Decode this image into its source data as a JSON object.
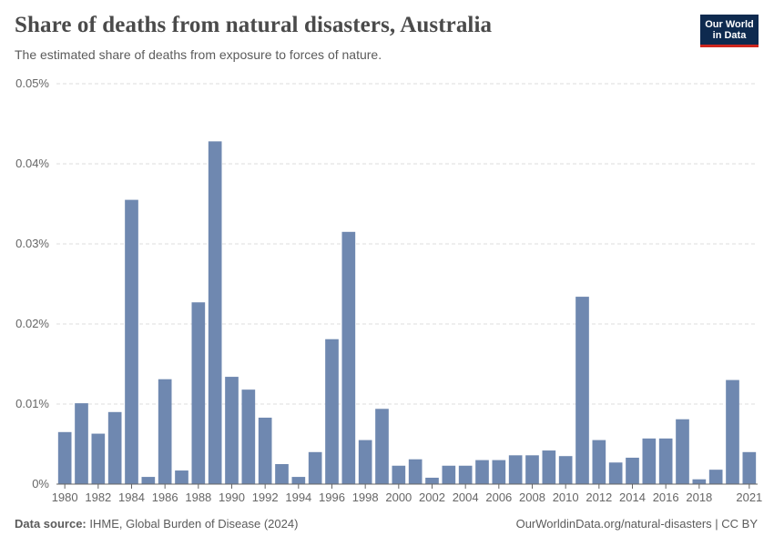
{
  "header": {
    "title": "Share of deaths from natural disasters, Australia",
    "subtitle": "The estimated share of deaths from exposure to forces of nature."
  },
  "logo": {
    "line1": "Our World",
    "line2": "in Data"
  },
  "footer": {
    "source_label": "Data source:",
    "source_text": "IHME, Global Burden of Disease (2024)",
    "link_text": "OurWorldinData.org/natural-disasters | CC BY"
  },
  "colors": {
    "bar": "#6f88b0",
    "grid": "#dddddd",
    "axis": "#666666"
  },
  "chart_data": {
    "type": "bar",
    "title": "Share of deaths from natural disasters, Australia",
    "xlabel": "",
    "ylabel": "",
    "ylim": [
      0,
      0.05
    ],
    "y_ticks": [
      0,
      0.01,
      0.02,
      0.03,
      0.04,
      0.05
    ],
    "y_tick_labels": [
      "0%",
      "0.01%",
      "0.02%",
      "0.03%",
      "0.04%",
      "0.05%"
    ],
    "categories": [
      1980,
      1981,
      1982,
      1983,
      1984,
      1985,
      1986,
      1987,
      1988,
      1989,
      1990,
      1991,
      1992,
      1993,
      1994,
      1995,
      1996,
      1997,
      1998,
      1999,
      2000,
      2001,
      2002,
      2003,
      2004,
      2005,
      2006,
      2007,
      2008,
      2009,
      2010,
      2011,
      2012,
      2013,
      2014,
      2015,
      2016,
      2017,
      2018,
      2019,
      2020,
      2021
    ],
    "x_tick_labels": [
      "1980",
      "1982",
      "1984",
      "1986",
      "1988",
      "1990",
      "1992",
      "1994",
      "1996",
      "1998",
      "2000",
      "2002",
      "2004",
      "2006",
      "2008",
      "2010",
      "2012",
      "2014",
      "2016",
      "2018",
      "2021"
    ],
    "values": [
      0.0065,
      0.0101,
      0.0063,
      0.009,
      0.0355,
      0.0009,
      0.0131,
      0.0017,
      0.0227,
      0.0428,
      0.0134,
      0.0118,
      0.0083,
      0.0025,
      0.0009,
      0.004,
      0.0181,
      0.0315,
      0.0055,
      0.0094,
      0.0023,
      0.0031,
      0.0008,
      0.0023,
      0.0023,
      0.003,
      0.003,
      0.0036,
      0.0036,
      0.0042,
      0.0035,
      0.0234,
      0.0055,
      0.0027,
      0.0033,
      0.0057,
      0.0057,
      0.0081,
      0.0006,
      0.0018,
      0.013,
      0.004
    ],
    "unit": "%"
  }
}
